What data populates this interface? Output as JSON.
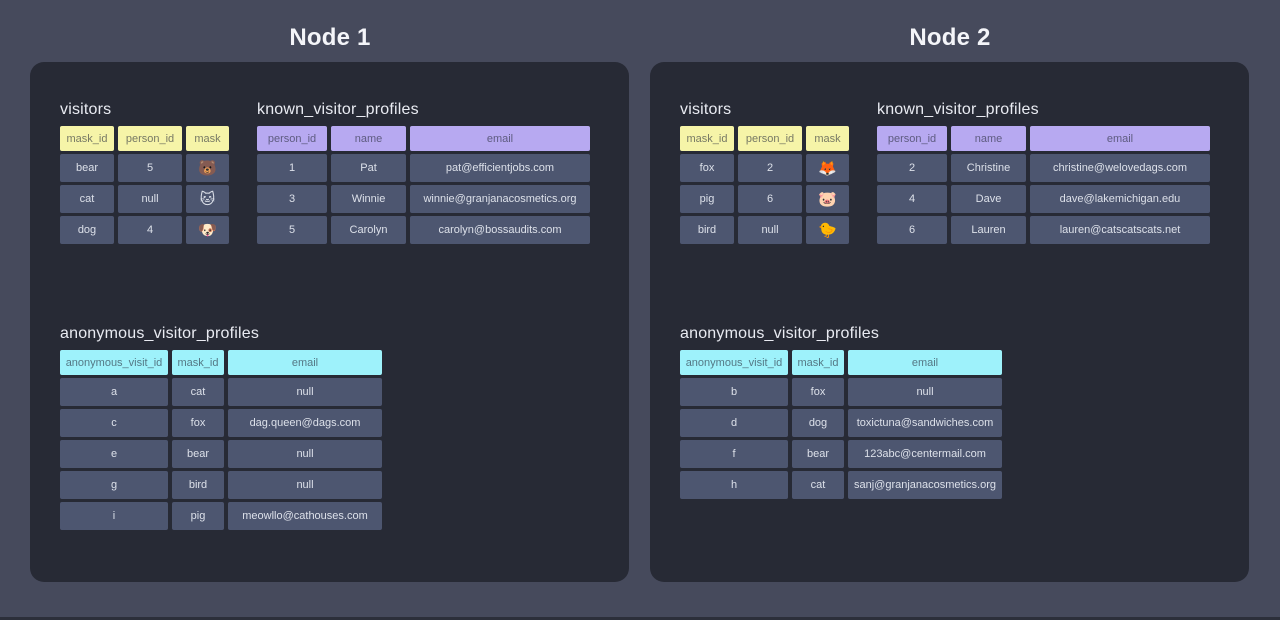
{
  "colors": {
    "page_bg": "#464a5c",
    "panel_bg": "#272a35",
    "cell_bg": "#4d5670",
    "yellow_header": "#f6f4a8",
    "purple_header": "#b7a9f1",
    "cyan_header": "#9ef2fb"
  },
  "nodes": [
    {
      "title": "Node 1",
      "tables": [
        {
          "name": "visitors",
          "slot": "visitors",
          "header_color": "yellow_header",
          "columns": [
            "mask_id",
            "person_id",
            "mask"
          ],
          "rows": [
            [
              "bear",
              "5",
              "🐻"
            ],
            [
              "cat",
              "null",
              "🐱"
            ],
            [
              "dog",
              "4",
              "🐶"
            ]
          ]
        },
        {
          "name": "known_visitor_profiles",
          "slot": "known_visitor_profiles",
          "header_color": "purple_header",
          "columns": [
            "person_id",
            "name",
            "email"
          ],
          "rows": [
            [
              "1",
              "Pat",
              "pat@efficientjobs.com"
            ],
            [
              "3",
              "Winnie",
              "winnie@granjanacosmetics.org"
            ],
            [
              "5",
              "Carolyn",
              "carolyn@bossaudits.com"
            ]
          ]
        },
        {
          "name": "anonymous_visitor_profiles",
          "slot": "anonymous_visitor_profiles",
          "header_color": "cyan_header",
          "columns": [
            "anonymous_visit_id",
            "mask_id",
            "email"
          ],
          "rows": [
            [
              "a",
              "cat",
              "null"
            ],
            [
              "c",
              "fox",
              "dag.queen@dags.com"
            ],
            [
              "e",
              "bear",
              "null"
            ],
            [
              "g",
              "bird",
              "null"
            ],
            [
              "i",
              "pig",
              "meowllo@cathouses.com"
            ]
          ]
        }
      ]
    },
    {
      "title": "Node 2",
      "tables": [
        {
          "name": "visitors",
          "slot": "visitors",
          "header_color": "yellow_header",
          "columns": [
            "mask_id",
            "person_id",
            "mask"
          ],
          "rows": [
            [
              "fox",
              "2",
              "🦊"
            ],
            [
              "pig",
              "6",
              "🐷"
            ],
            [
              "bird",
              "null",
              "🐤"
            ]
          ]
        },
        {
          "name": "known_visitor_profiles",
          "slot": "known_visitor_profiles",
          "header_color": "purple_header",
          "columns": [
            "person_id",
            "name",
            "email"
          ],
          "rows": [
            [
              "2",
              "Christine",
              "christine@welovedags.com"
            ],
            [
              "4",
              "Dave",
              "dave@lakemichigan.edu"
            ],
            [
              "6",
              "Lauren",
              "lauren@catscatscats.net"
            ]
          ]
        },
        {
          "name": "anonymous_visitor_profiles",
          "slot": "anonymous_visitor_profiles",
          "header_color": "cyan_header",
          "columns": [
            "anonymous_visit_id",
            "mask_id",
            "email"
          ],
          "rows": [
            [
              "b",
              "fox",
              "null"
            ],
            [
              "d",
              "dog",
              "toxictuna@sandwiches.com"
            ],
            [
              "f",
              "bear",
              "123abc@centermail.com"
            ],
            [
              "h",
              "cat",
              "sanj@granjanacosmetics.org"
            ]
          ]
        }
      ]
    }
  ]
}
